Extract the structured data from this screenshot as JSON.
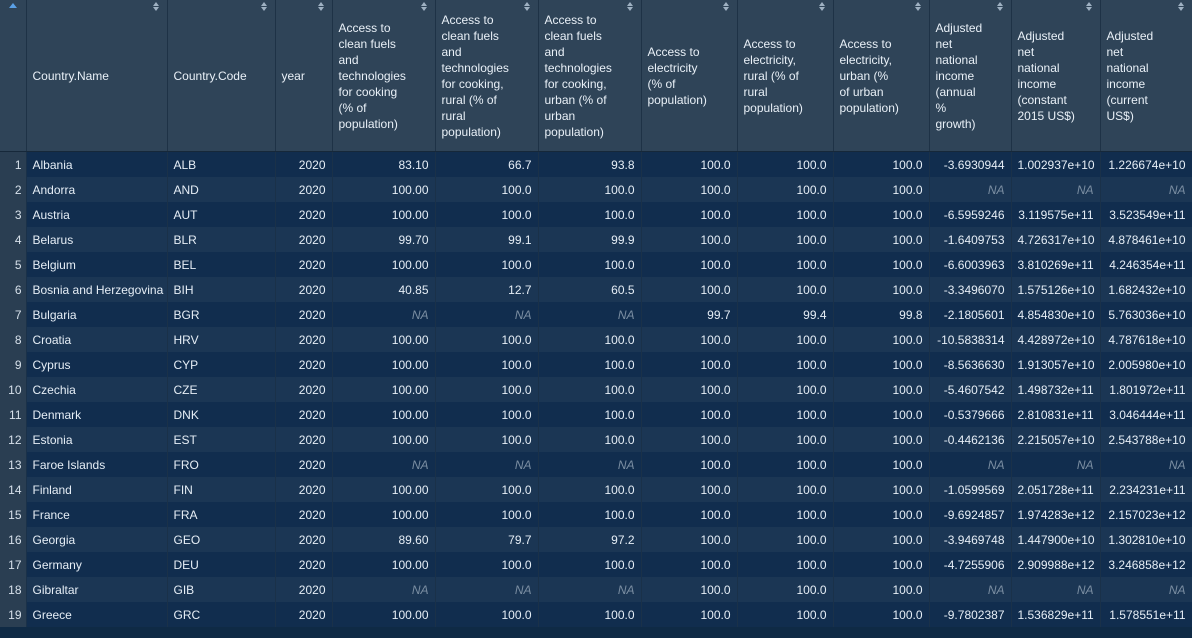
{
  "columns": [
    "",
    "Country.Name",
    "Country.Code",
    "year",
    "Access to\nclean fuels\nand\ntechnologies\nfor cooking\n(% of\npopulation)",
    "Access to\nclean fuels\nand\ntechnologies\nfor cooking,\nrural (% of\nrural\npopulation)",
    "Access to\nclean fuels\nand\ntechnologies\nfor cooking,\nurban (% of\nurban\npopulation)",
    "Access to\nelectricity\n(% of\npopulation)",
    "Access to\nelectricity,\nrural (% of\nrural\npopulation)",
    "Access to\nelectricity,\nurban (%\nof urban\npopulation)",
    "Adjusted\nnet\nnational\nincome\n(annual\n%\ngrowth)",
    "Adjusted\nnet\nnational\nincome\n(constant\n2015 US$)",
    "Adjusted\nnet\nnational\nincome\n(current\nUS$)"
  ],
  "rows": [
    [
      "1",
      "Albania",
      "ALB",
      "2020",
      "83.10",
      "66.7",
      "93.8",
      "100.0",
      "100.0",
      "100.0",
      "-3.6930944",
      "1.002937e+10",
      "1.226674e+10"
    ],
    [
      "2",
      "Andorra",
      "AND",
      "2020",
      "100.00",
      "100.0",
      "100.0",
      "100.0",
      "100.0",
      "100.0",
      "NA",
      "NA",
      "NA"
    ],
    [
      "3",
      "Austria",
      "AUT",
      "2020",
      "100.00",
      "100.0",
      "100.0",
      "100.0",
      "100.0",
      "100.0",
      "-6.5959246",
      "3.119575e+11",
      "3.523549e+11"
    ],
    [
      "4",
      "Belarus",
      "BLR",
      "2020",
      "99.70",
      "99.1",
      "99.9",
      "100.0",
      "100.0",
      "100.0",
      "-1.6409753",
      "4.726317e+10",
      "4.878461e+10"
    ],
    [
      "5",
      "Belgium",
      "BEL",
      "2020",
      "100.00",
      "100.0",
      "100.0",
      "100.0",
      "100.0",
      "100.0",
      "-6.6003963",
      "3.810269e+11",
      "4.246354e+11"
    ],
    [
      "6",
      "Bosnia and Herzegovina",
      "BIH",
      "2020",
      "40.85",
      "12.7",
      "60.5",
      "100.0",
      "100.0",
      "100.0",
      "-3.3496070",
      "1.575126e+10",
      "1.682432e+10"
    ],
    [
      "7",
      "Bulgaria",
      "BGR",
      "2020",
      "NA",
      "NA",
      "NA",
      "99.7",
      "99.4",
      "99.8",
      "-2.1805601",
      "4.854830e+10",
      "5.763036e+10"
    ],
    [
      "8",
      "Croatia",
      "HRV",
      "2020",
      "100.00",
      "100.0",
      "100.0",
      "100.0",
      "100.0",
      "100.0",
      "-10.5838314",
      "4.428972e+10",
      "4.787618e+10"
    ],
    [
      "9",
      "Cyprus",
      "CYP",
      "2020",
      "100.00",
      "100.0",
      "100.0",
      "100.0",
      "100.0",
      "100.0",
      "-8.5636630",
      "1.913057e+10",
      "2.005980e+10"
    ],
    [
      "10",
      "Czechia",
      "CZE",
      "2020",
      "100.00",
      "100.0",
      "100.0",
      "100.0",
      "100.0",
      "100.0",
      "-5.4607542",
      "1.498732e+11",
      "1.801972e+11"
    ],
    [
      "11",
      "Denmark",
      "DNK",
      "2020",
      "100.00",
      "100.0",
      "100.0",
      "100.0",
      "100.0",
      "100.0",
      "-0.5379666",
      "2.810831e+11",
      "3.046444e+11"
    ],
    [
      "12",
      "Estonia",
      "EST",
      "2020",
      "100.00",
      "100.0",
      "100.0",
      "100.0",
      "100.0",
      "100.0",
      "-0.4462136",
      "2.215057e+10",
      "2.543788e+10"
    ],
    [
      "13",
      "Faroe Islands",
      "FRO",
      "2020",
      "NA",
      "NA",
      "NA",
      "100.0",
      "100.0",
      "100.0",
      "NA",
      "NA",
      "NA"
    ],
    [
      "14",
      "Finland",
      "FIN",
      "2020",
      "100.00",
      "100.0",
      "100.0",
      "100.0",
      "100.0",
      "100.0",
      "-1.0599569",
      "2.051728e+11",
      "2.234231e+11"
    ],
    [
      "15",
      "France",
      "FRA",
      "2020",
      "100.00",
      "100.0",
      "100.0",
      "100.0",
      "100.0",
      "100.0",
      "-9.6924857",
      "1.974283e+12",
      "2.157023e+12"
    ],
    [
      "16",
      "Georgia",
      "GEO",
      "2020",
      "89.60",
      "79.7",
      "97.2",
      "100.0",
      "100.0",
      "100.0",
      "-3.9469748",
      "1.447900e+10",
      "1.302810e+10"
    ],
    [
      "17",
      "Germany",
      "DEU",
      "2020",
      "100.00",
      "100.0",
      "100.0",
      "100.0",
      "100.0",
      "100.0",
      "-4.7255906",
      "2.909988e+12",
      "3.246858e+12"
    ],
    [
      "18",
      "Gibraltar",
      "GIB",
      "2020",
      "NA",
      "NA",
      "NA",
      "100.0",
      "100.0",
      "100.0",
      "NA",
      "NA",
      "NA"
    ],
    [
      "19",
      "Greece",
      "GRC",
      "2020",
      "100.00",
      "100.0",
      "100.0",
      "100.0",
      "100.0",
      "100.0",
      "-9.7802387",
      "1.536829e+11",
      "1.578551e+11"
    ]
  ]
}
